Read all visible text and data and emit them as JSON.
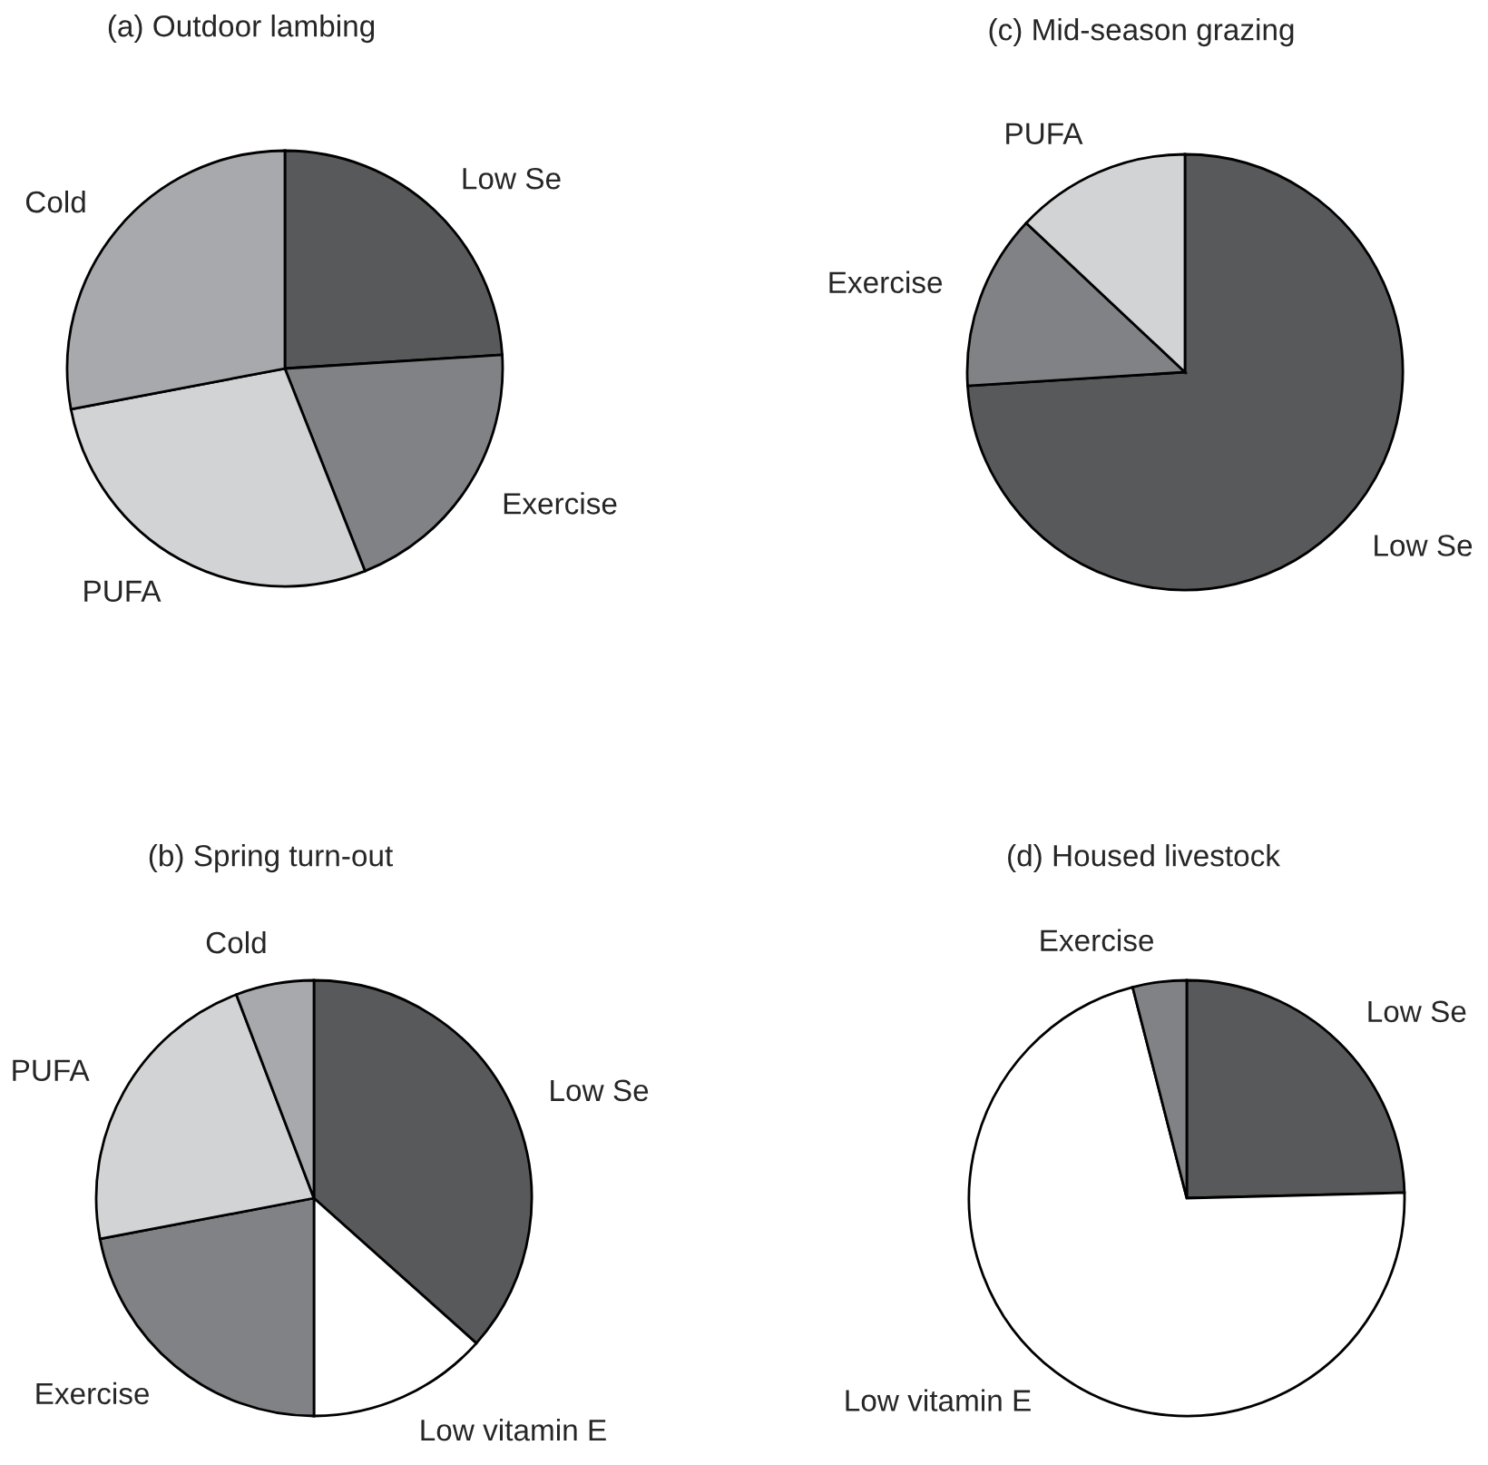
{
  "chart_data": [
    {
      "type": "pie",
      "title": "(a) Outdoor lambing",
      "categories": [
        "Low Se",
        "Exercise",
        "PUFA",
        "Cold"
      ],
      "values": [
        24,
        20,
        28,
        28
      ],
      "colors": [
        "#58595b",
        "#808285",
        "#d1d3d4",
        "#a7a9ac"
      ]
    },
    {
      "type": "pie",
      "title": "(c) Mid-season grazing",
      "categories": [
        "Low Se",
        "Exercise",
        "PUFA"
      ],
      "values": [
        74,
        13,
        13
      ],
      "colors": [
        "#58595b",
        "#808285",
        "#d1d3d4"
      ]
    },
    {
      "type": "pie",
      "title": "(b) Spring turn-out",
      "categories": [
        "Low Se",
        "Low vitamin E",
        "Exercise",
        "PUFA",
        "Cold"
      ],
      "values": [
        36.6,
        13.4,
        22,
        22.2,
        5.8
      ],
      "colors": [
        "#58595b",
        "#ffffff",
        "#808285",
        "#d1d3d4",
        "#a7a9ac"
      ]
    },
    {
      "type": "pie",
      "title": "(d) Housed livestock",
      "categories": [
        "Low Se",
        "Low vitamin E",
        "Exercise"
      ],
      "values": [
        24.6,
        71.4,
        4
      ],
      "colors": [
        "#58595b",
        "#ffffff",
        "#808285"
      ]
    }
  ]
}
